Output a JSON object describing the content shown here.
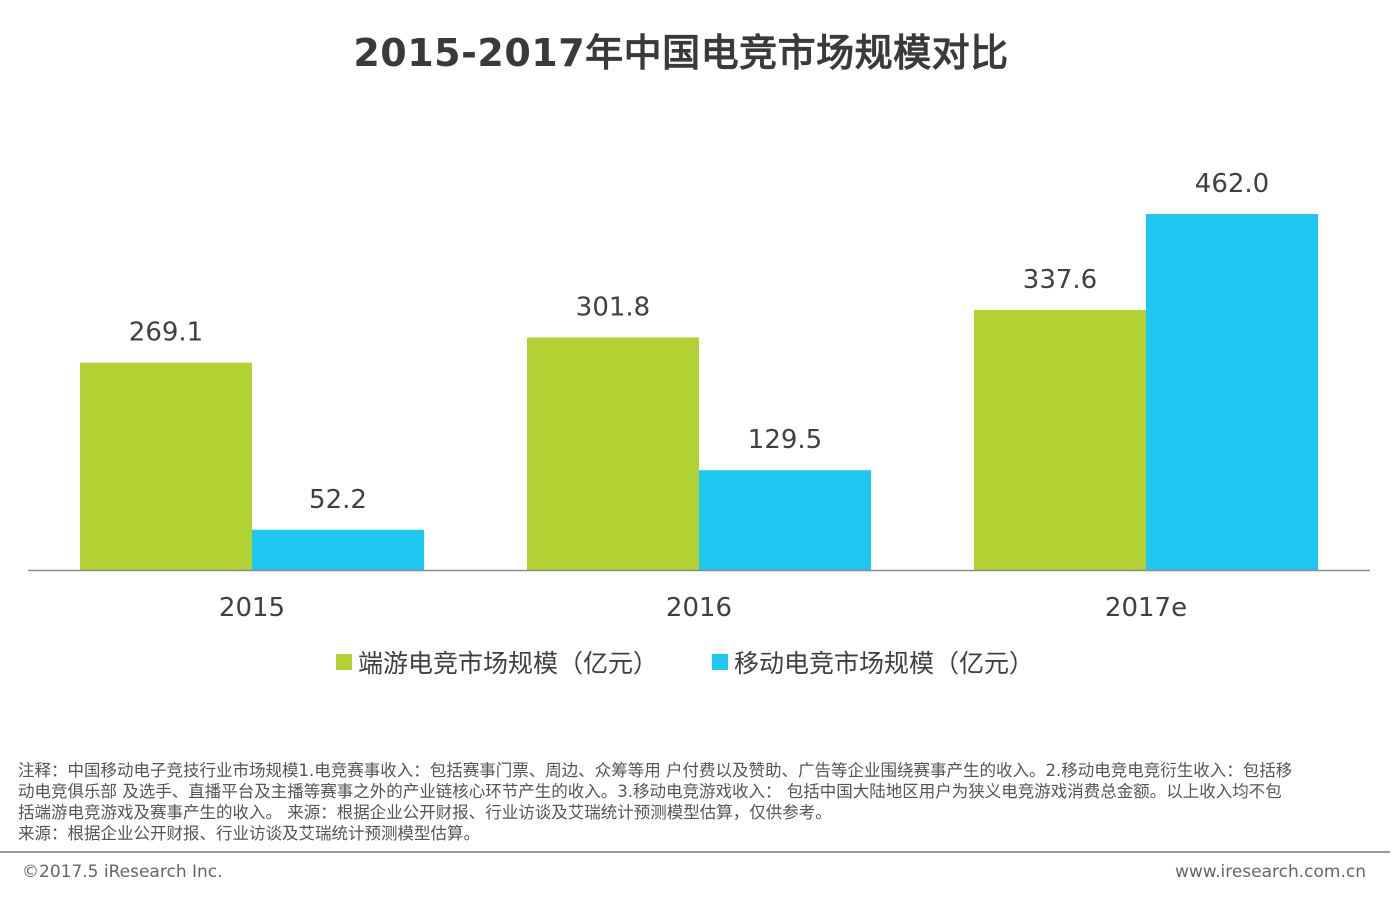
{
  "chart_data": {
    "type": "bar",
    "title": "2015-2017年中国电竞市场规模对比",
    "categories": [
      "2015",
      "2016",
      "2017e"
    ],
    "series": [
      {
        "name": "端游电竞市场规模（亿元）",
        "values": [
          269.1,
          301.8,
          337.6
        ],
        "value_labels": [
          "269.1",
          "301.8",
          "337.6"
        ],
        "color": "#b2d234"
      },
      {
        "name": "移动电竞市场规模（亿元）",
        "values": [
          52.2,
          129.5,
          462.0
        ],
        "value_labels": [
          "52.2",
          "129.5",
          "462.0"
        ],
        "color": "#1ec7f0"
      }
    ],
    "xlabel": "",
    "ylabel": "",
    "ylim": [
      0,
      480
    ],
    "grid": false,
    "legend_position": "bottom"
  },
  "colors": {
    "axis": "#8c8c8c",
    "label": "#404040"
  },
  "notes": {
    "line1": "注释：中国移动电子竞技行业市场规模1.电竞赛事收入：包括赛事门票、周边、众筹等用 户付费以及赞助、广告等企业围绕赛事产生的收入。2.移动电竞电竞衍生收入：包括移",
    "line2": "动电竞俱乐部 及选手、直播平台及主播等赛事之外的产业链核心环节产生的收入。3.移动电竞游戏收入： 包括中国大陆地区用户为狭义电竞游戏消费总金额。以上收入均不包",
    "line3": "括端游电竞游戏及赛事产生的收入。 来源：根据企业公开财报、行业访谈及艾瑞统计预测模型估算，仅供参考。",
    "line4": "来源：根据企业公开财报、行业访谈及艾瑞统计预测模型估算。"
  },
  "footer": {
    "copyright": "©2017.5 iResearch Inc.",
    "website": "www.iresearch.com.cn"
  }
}
